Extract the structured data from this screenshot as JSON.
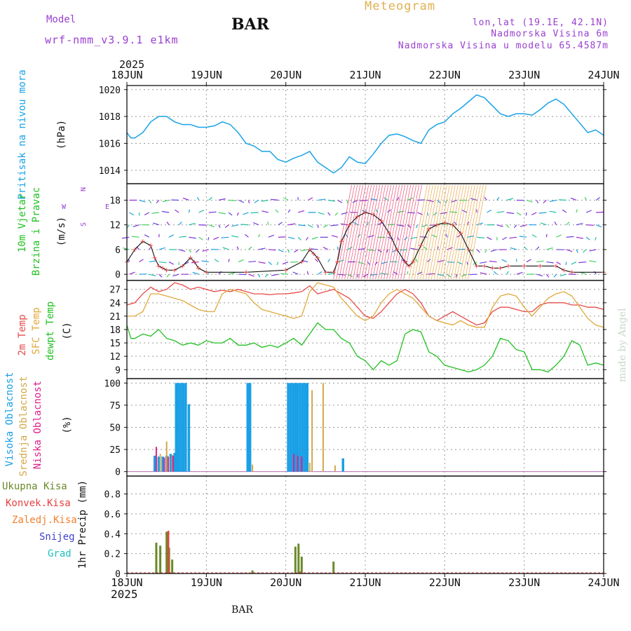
{
  "header": {
    "model_label": "Model",
    "model_name": "wrf-nmm_v3.9.1 e1km",
    "station": "BAR",
    "title": "Meteogram",
    "location": "lon,lat (19.1E, 42.1N)",
    "elevation": "Nadmorska Visina 6m",
    "model_elevation": "Nadmorska Visina u modelu 65.4587m",
    "year": "2025"
  },
  "footer": {
    "year": "2025",
    "station": "BAR",
    "watermark": "made by Angel"
  },
  "colors": {
    "pressure": "#1aa3e6",
    "temp2m": "#e84a4a",
    "sfc_temp": "#e0a83a",
    "dewpoint": "#22c022",
    "cloud_high": "#1aa0e6",
    "cloud_mid": "#d4a84a",
    "cloud_low": "#e0208a",
    "precip_total": "#6a8a2a",
    "precip_conv": "#e84040",
    "precip_frozen": "#f08030",
    "snow": "#4040d0",
    "hail": "#20c0c0",
    "wind_label": "#22c022",
    "wind_dir_label": "#9a3fd0"
  },
  "chart_data": [
    {
      "type": "line",
      "panel": "pressure",
      "ylabel": "Pritisak na nivou mora",
      "unit": "(hPa)",
      "ylim": [
        1013,
        1020.3
      ],
      "yticks": [
        "1014",
        "1016",
        "1018",
        "1020"
      ],
      "xticks": [
        "18JUN",
        "19JUN",
        "20JUN",
        "21JUN",
        "22JUN",
        "23JUN",
        "24JUN"
      ],
      "x_range_days": [
        0,
        6
      ],
      "series": [
        {
          "x": [
            0,
            0.05,
            0.1,
            0.2,
            0.3,
            0.4,
            0.5,
            0.6,
            0.7,
            0.8,
            0.9,
            1.0,
            1.1,
            1.2,
            1.3,
            1.4,
            1.5,
            1.6,
            1.7,
            1.8,
            1.9,
            2.0,
            2.1,
            2.2,
            2.3,
            2.4,
            2.5,
            2.6,
            2.7,
            2.8,
            2.9,
            3.0,
            3.1,
            3.2,
            3.3,
            3.4,
            3.5,
            3.6,
            3.7,
            3.8,
            3.9,
            4.0,
            4.1,
            4.2,
            4.3,
            4.4,
            4.5,
            4.6,
            4.7,
            4.8,
            4.9,
            5.0,
            5.1,
            5.2,
            5.3,
            5.4,
            5.5,
            5.6,
            5.7,
            5.8,
            5.9,
            6.0
          ],
          "values": [
            1016.8,
            1016.4,
            1016.4,
            1016.8,
            1017.6,
            1018.0,
            1018.0,
            1017.6,
            1017.4,
            1017.4,
            1017.2,
            1017.2,
            1017.3,
            1017.6,
            1017.4,
            1016.8,
            1016.0,
            1015.8,
            1015.4,
            1015.4,
            1014.8,
            1014.6,
            1014.9,
            1015.1,
            1015.4,
            1014.6,
            1014.2,
            1013.8,
            1014.2,
            1015.0,
            1014.6,
            1014.5,
            1015.2,
            1016.0,
            1016.6,
            1016.7,
            1016.5,
            1016.2,
            1016.0,
            1017.0,
            1017.4,
            1017.6,
            1018.2,
            1018.6,
            1019.1,
            1019.6,
            1019.4,
            1018.8,
            1018.2,
            1018.0,
            1018.2,
            1018.2,
            1018.1,
            1018.5,
            1019.0,
            1019.3,
            1018.9,
            1018.2,
            1017.5,
            1016.8,
            1017.0,
            1016.6
          ]
        }
      ]
    },
    {
      "type": "line",
      "panel": "wind",
      "ylabel": "10m Vjetar",
      "ylabel2": "Brzina i Pravac",
      "unit": "(m/s)",
      "direction_legend": {
        "n": "N",
        "s": "S",
        "w": "W",
        "e": "E"
      },
      "ylim": [
        -1.5,
        22
      ],
      "yticks": [
        "0",
        "6",
        "12",
        "18"
      ],
      "series": [
        {
          "name": "wind_speed",
          "x": [
            0,
            0.1,
            0.2,
            0.3,
            0.35,
            0.4,
            0.45,
            0.5,
            0.6,
            0.7,
            0.8,
            0.85,
            0.9,
            1.0,
            1.5,
            2.0,
            2.2,
            2.3,
            2.35,
            2.4,
            2.5,
            2.6,
            2.65,
            2.7,
            2.8,
            2.9,
            3.0,
            3.1,
            3.2,
            3.3,
            3.4,
            3.5,
            3.55,
            3.6,
            3.7,
            3.8,
            3.9,
            4.0,
            4.1,
            4.2,
            4.3,
            4.4,
            4.5,
            4.6,
            4.7,
            4.8,
            5.0,
            5.2,
            5.4,
            5.5,
            5.6,
            6.0
          ],
          "values": [
            3,
            6,
            8,
            7,
            4,
            2,
            1.5,
            1,
            1,
            2,
            4,
            3,
            1.5,
            0.5,
            0.5,
            1,
            3,
            6,
            5,
            4,
            0.5,
            0.5,
            3,
            8,
            12,
            14,
            15,
            14.5,
            13,
            10,
            6,
            3,
            2,
            3,
            7,
            11,
            12,
            12.5,
            12,
            10,
            6,
            2,
            2,
            1.5,
            1.5,
            2,
            2,
            2,
            2,
            1,
            0.5,
            0.5
          ]
        }
      ]
    },
    {
      "type": "line",
      "panel": "temperature",
      "legend": [
        "2m Temp",
        "SFC Temp",
        "dewpt Temp"
      ],
      "unit": "(C)",
      "ylim": [
        7,
        29
      ],
      "yticks": [
        "9",
        "12",
        "15",
        "18",
        "21",
        "24",
        "27"
      ],
      "series": [
        {
          "name": "2m Temp",
          "x": [
            0,
            0.1,
            0.2,
            0.3,
            0.4,
            0.5,
            0.6,
            0.7,
            0.8,
            0.9,
            1.0,
            1.1,
            1.2,
            1.3,
            1.4,
            1.5,
            1.6,
            1.7,
            1.8,
            1.9,
            2.0,
            2.1,
            2.2,
            2.3,
            2.4,
            2.5,
            2.6,
            2.7,
            2.8,
            2.9,
            3.0,
            3.1,
            3.2,
            3.3,
            3.4,
            3.5,
            3.6,
            3.7,
            3.8,
            3.9,
            4.0,
            4.1,
            4.2,
            4.3,
            4.4,
            4.5,
            4.6,
            4.7,
            4.8,
            4.9,
            5.0,
            5.1,
            5.2,
            5.3,
            5.4,
            5.5,
            5.6,
            5.7,
            5.8,
            5.9,
            6.0
          ],
          "values": [
            23.5,
            24,
            26,
            27.5,
            26.5,
            27,
            28.5,
            28,
            27,
            27.5,
            27,
            26.5,
            26.8,
            26.5,
            27,
            26.5,
            26,
            26,
            25.8,
            26,
            26,
            26.2,
            26.5,
            27.8,
            26,
            26.5,
            27,
            26,
            25,
            23,
            21,
            20.5,
            22,
            24,
            26,
            27,
            26,
            24,
            21,
            20,
            21,
            22,
            21,
            20,
            19,
            19.5,
            22,
            23,
            23,
            22.5,
            22,
            22,
            23.5,
            24,
            24,
            24,
            23.5,
            23.5,
            23,
            23,
            22.5
          ]
        },
        {
          "name": "SFC Temp",
          "x": [
            0,
            0.1,
            0.2,
            0.3,
            0.4,
            0.5,
            0.6,
            0.7,
            0.8,
            0.9,
            1.0,
            1.1,
            1.2,
            1.3,
            1.4,
            1.5,
            1.6,
            1.7,
            1.8,
            1.9,
            2.0,
            2.1,
            2.2,
            2.3,
            2.4,
            2.5,
            2.6,
            2.7,
            2.8,
            2.9,
            3.0,
            3.1,
            3.2,
            3.3,
            3.4,
            3.5,
            3.6,
            3.7,
            3.8,
            3.9,
            4.0,
            4.1,
            4.2,
            4.3,
            4.4,
            4.5,
            4.6,
            4.7,
            4.8,
            4.9,
            5.0,
            5.1,
            5.2,
            5.3,
            5.4,
            5.5,
            5.6,
            5.7,
            5.8,
            5.9,
            6.0
          ],
          "values": [
            21,
            21,
            22,
            26,
            26,
            25.5,
            25,
            24.5,
            23.5,
            22.5,
            22,
            22,
            26,
            27,
            26.5,
            26,
            24,
            22.5,
            22,
            21.5,
            21,
            20.5,
            21,
            26.5,
            28.5,
            28,
            27.5,
            25,
            23,
            21,
            20,
            21,
            24,
            26,
            27,
            26,
            25,
            23,
            21,
            20,
            19.5,
            19,
            20,
            19,
            18.5,
            18.5,
            23,
            25.5,
            26,
            25.5,
            23,
            21,
            23,
            25,
            26,
            26.5,
            25.5,
            23,
            20.5,
            19,
            18.5
          ]
        },
        {
          "name": "dewpt Temp",
          "x": [
            0,
            0.05,
            0.1,
            0.2,
            0.3,
            0.4,
            0.5,
            0.6,
            0.7,
            0.8,
            0.9,
            1.0,
            1.1,
            1.2,
            1.3,
            1.4,
            1.5,
            1.6,
            1.7,
            1.8,
            1.9,
            2.0,
            2.1,
            2.2,
            2.3,
            2.4,
            2.5,
            2.6,
            2.7,
            2.8,
            2.9,
            3.0,
            3.1,
            3.2,
            3.3,
            3.4,
            3.5,
            3.6,
            3.7,
            3.8,
            3.9,
            4.0,
            4.1,
            4.2,
            4.3,
            4.4,
            4.5,
            4.6,
            4.7,
            4.8,
            4.9,
            5.0,
            5.1,
            5.2,
            5.3,
            5.4,
            5.5,
            5.6,
            5.7,
            5.8,
            5.9,
            6.0
          ],
          "values": [
            19,
            16,
            16,
            17,
            16.5,
            18,
            16,
            15.5,
            14.5,
            15,
            14.5,
            15.5,
            15,
            15,
            16,
            14.5,
            14.5,
            15,
            14,
            14.5,
            14,
            15,
            16,
            14.5,
            17,
            19.5,
            18,
            18,
            16,
            15,
            12,
            11,
            9,
            11,
            10,
            11,
            17,
            18,
            17.5,
            13,
            12,
            10,
            9.5,
            9,
            8.5,
            9,
            10,
            12,
            16,
            15.5,
            13.5,
            13,
            9,
            9,
            8.5,
            10,
            12,
            15.5,
            14.5,
            10,
            10.5,
            10
          ]
        }
      ]
    },
    {
      "type": "bar",
      "panel": "clouds",
      "legend": [
        "Visoka Oblacnost",
        "Srednja Oblacnost",
        "Niska Oblacnost"
      ],
      "unit": "(%)",
      "ylim": [
        -5,
        105
      ],
      "yticks": [
        "0",
        "25",
        "50",
        "75",
        "100"
      ],
      "series": [
        {
          "name": "Visoka Oblacnost",
          "x": [
            0.35,
            0.4,
            0.45,
            0.5,
            0.55,
            0.6,
            0.62,
            0.65,
            0.68,
            0.71,
            0.74,
            0.78,
            1.52,
            1.55,
            2.03,
            2.06,
            2.09,
            2.12,
            2.15,
            2.18,
            2.21,
            2.24,
            2.27,
            2.72
          ],
          "values": [
            18,
            17,
            17,
            18,
            20,
            21,
            100,
            100,
            100,
            100,
            100,
            76,
            100,
            100,
            100,
            100,
            100,
            100,
            100,
            100,
            100,
            100,
            100,
            15
          ]
        },
        {
          "name": "Srednja Oblacnost",
          "x": [
            0.42,
            0.5,
            0.57,
            1.58,
            2.3,
            2.33,
            2.47,
            2.62
          ],
          "values": [
            20,
            34,
            19,
            8,
            10,
            92,
            100,
            7
          ]
        },
        {
          "name": "Niska Oblacnost",
          "x": [
            0.37,
            0.47,
            0.52,
            0.58,
            2.1,
            2.15,
            2.2
          ],
          "values": [
            28,
            16,
            17,
            18,
            20,
            18,
            17
          ]
        }
      ]
    },
    {
      "type": "bar",
      "panel": "precipitation",
      "legend": [
        "Ukupna Kisa",
        "Konvek.Kisa",
        "Zaledj.Kisa",
        "Snijeg",
        "Grad"
      ],
      "ylabel": "1hr Precip (mm)",
      "ylim": [
        0,
        0.98
      ],
      "yticks": [
        "0",
        "0.2",
        "0.4",
        "0.6",
        "0.8"
      ],
      "xticks": [
        "18JUN",
        "19JUN",
        "20JUN",
        "21JUN",
        "22JUN",
        "23JUN",
        "24JUN"
      ],
      "series": [
        {
          "name": "Ukupna Kisa",
          "x": [
            0.37,
            0.42,
            0.5,
            0.53,
            0.57,
            0.6,
            1.58,
            2.12,
            2.16,
            2.2,
            2.23,
            2.6
          ],
          "values": [
            0.31,
            0.28,
            0.42,
            0.26,
            0.14,
            0.005,
            0.03,
            0.27,
            0.3,
            0.17,
            0.005,
            0.12
          ]
        },
        {
          "name": "Konvek.Kisa",
          "x": [
            0.5,
            2.16
          ],
          "values": [
            0.43,
            0.02
          ]
        }
      ]
    }
  ]
}
